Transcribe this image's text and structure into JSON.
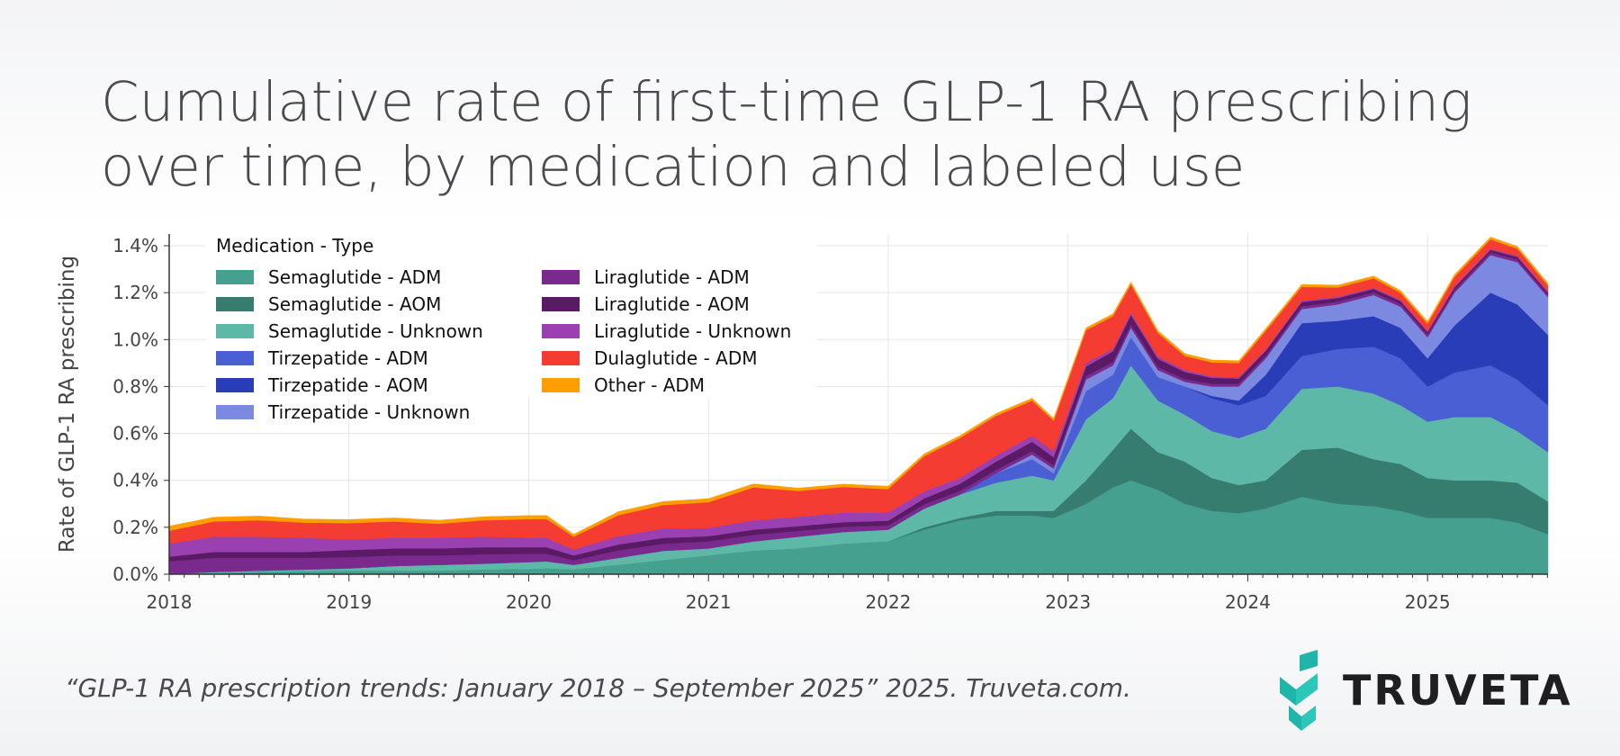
{
  "title": "Cumulative rate of first-time GLP-1 RA prescribing over time, by medication and labeled use",
  "citation": "“GLP-1 RA prescription trends: January 2018 – September 2025” 2025. Truveta.com.",
  "logo": {
    "text": "TRUVETA",
    "icon": "truveta-chevron-logo-icon",
    "color": "#1fb5a8"
  },
  "chart_data": {
    "type": "area",
    "stacked": true,
    "ylabel": "Rate of GLP-1 RA prescribing",
    "xlabel": "",
    "ylim": [
      0,
      1.45
    ],
    "yticks": [
      "0.0%",
      "0.2%",
      "0.4%",
      "0.6%",
      "0.8%",
      "1.0%",
      "1.2%",
      "1.4%"
    ],
    "ytick_values": [
      0,
      0.2,
      0.4,
      0.6,
      0.8,
      1.0,
      1.2,
      1.4
    ],
    "xticks": [
      "2018",
      "2019",
      "2020",
      "2021",
      "2022",
      "2023",
      "2024",
      "2025"
    ],
    "xlim": [
      2018.0,
      2025.67
    ],
    "grid": true,
    "legend": {
      "title": "Medication - Type",
      "placement": "top-left",
      "columns": 2
    },
    "x": [
      2018.0,
      2018.25,
      2018.5,
      2018.75,
      2019.0,
      2019.25,
      2019.5,
      2019.75,
      2020.0,
      2020.1,
      2020.25,
      2020.5,
      2020.75,
      2021.0,
      2021.25,
      2021.5,
      2021.75,
      2022.0,
      2022.2,
      2022.4,
      2022.6,
      2022.8,
      2022.92,
      2023.1,
      2023.25,
      2023.35,
      2023.5,
      2023.65,
      2023.8,
      2023.95,
      2024.1,
      2024.3,
      2024.5,
      2024.7,
      2024.85,
      2025.0,
      2025.15,
      2025.35,
      2025.5,
      2025.67
    ],
    "series": [
      {
        "name": "Semaglutide - ADM",
        "color": "#46a08f",
        "values": [
          0.0,
          0.005,
          0.01,
          0.012,
          0.015,
          0.015,
          0.015,
          0.02,
          0.022,
          0.025,
          0.02,
          0.04,
          0.06,
          0.08,
          0.1,
          0.11,
          0.13,
          0.14,
          0.19,
          0.23,
          0.25,
          0.25,
          0.24,
          0.3,
          0.37,
          0.4,
          0.36,
          0.3,
          0.27,
          0.26,
          0.28,
          0.33,
          0.3,
          0.29,
          0.27,
          0.24,
          0.24,
          0.24,
          0.22,
          0.17
        ]
      },
      {
        "name": "Semaglutide - AOM",
        "color": "#367d70",
        "values": [
          0.0,
          0.0,
          0.0,
          0.0,
          0.0,
          0.0,
          0.0,
          0.0,
          0.0,
          0.0,
          0.0,
          0.0,
          0.0,
          0.0,
          0.0,
          0.0,
          0.0,
          0.0,
          0.01,
          0.01,
          0.02,
          0.02,
          0.03,
          0.1,
          0.16,
          0.22,
          0.16,
          0.18,
          0.14,
          0.12,
          0.12,
          0.2,
          0.24,
          0.2,
          0.2,
          0.17,
          0.16,
          0.16,
          0.17,
          0.14
        ]
      },
      {
        "name": "Semaglutide - Unknown",
        "color": "#5eb8a8",
        "values": [
          0.0,
          0.005,
          0.005,
          0.008,
          0.01,
          0.02,
          0.025,
          0.025,
          0.03,
          0.03,
          0.02,
          0.03,
          0.04,
          0.03,
          0.04,
          0.05,
          0.05,
          0.05,
          0.08,
          0.1,
          0.12,
          0.15,
          0.13,
          0.26,
          0.22,
          0.27,
          0.22,
          0.2,
          0.2,
          0.2,
          0.22,
          0.26,
          0.26,
          0.28,
          0.25,
          0.24,
          0.27,
          0.27,
          0.22,
          0.21
        ]
      },
      {
        "name": "Tirzepatide - ADM",
        "color": "#4a5fd4",
        "values": [
          0.0,
          0.0,
          0.0,
          0.0,
          0.0,
          0.0,
          0.0,
          0.0,
          0.0,
          0.0,
          0.0,
          0.0,
          0.0,
          0.0,
          0.0,
          0.0,
          0.0,
          0.0,
          0.0,
          0.0,
          0.04,
          0.07,
          0.03,
          0.12,
          0.1,
          0.12,
          0.1,
          0.12,
          0.14,
          0.14,
          0.14,
          0.14,
          0.16,
          0.2,
          0.2,
          0.15,
          0.19,
          0.22,
          0.22,
          0.2
        ]
      },
      {
        "name": "Tirzepatide - AOM",
        "color": "#2a3db8",
        "values": [
          0.0,
          0.0,
          0.0,
          0.0,
          0.0,
          0.0,
          0.0,
          0.0,
          0.0,
          0.0,
          0.0,
          0.0,
          0.0,
          0.0,
          0.0,
          0.0,
          0.0,
          0.0,
          0.0,
          0.0,
          0.0,
          0.0,
          0.0,
          0.0,
          0.0,
          0.0,
          0.0,
          0.0,
          0.01,
          0.02,
          0.09,
          0.14,
          0.12,
          0.13,
          0.13,
          0.12,
          0.2,
          0.31,
          0.32,
          0.3
        ]
      },
      {
        "name": "Tirzepatide - Unknown",
        "color": "#7b8ae0",
        "values": [
          0.0,
          0.0,
          0.0,
          0.0,
          0.0,
          0.0,
          0.0,
          0.0,
          0.0,
          0.0,
          0.0,
          0.0,
          0.0,
          0.0,
          0.0,
          0.0,
          0.0,
          0.0,
          0.0,
          0.0,
          0.0,
          0.02,
          0.02,
          0.05,
          0.04,
          0.04,
          0.03,
          0.02,
          0.04,
          0.06,
          0.07,
          0.06,
          0.07,
          0.09,
          0.09,
          0.09,
          0.14,
          0.16,
          0.18,
          0.16
        ]
      },
      {
        "name": "Liraglutide - ADM",
        "color": "#7a2a8c",
        "values": [
          0.055,
          0.06,
          0.055,
          0.05,
          0.048,
          0.045,
          0.04,
          0.04,
          0.035,
          0.032,
          0.02,
          0.032,
          0.03,
          0.03,
          0.028,
          0.025,
          0.022,
          0.018,
          0.018,
          0.016,
          0.015,
          0.015,
          0.014,
          0.015,
          0.015,
          0.015,
          0.013,
          0.012,
          0.012,
          0.012,
          0.012,
          0.012,
          0.012,
          0.012,
          0.012,
          0.012,
          0.012,
          0.012,
          0.012,
          0.01
        ]
      },
      {
        "name": "Liraglutide - AOM",
        "color": "#5a1a66",
        "values": [
          0.02,
          0.025,
          0.025,
          0.025,
          0.03,
          0.03,
          0.03,
          0.03,
          0.028,
          0.028,
          0.02,
          0.025,
          0.025,
          0.022,
          0.022,
          0.02,
          0.02,
          0.02,
          0.025,
          0.03,
          0.035,
          0.04,
          0.035,
          0.04,
          0.045,
          0.04,
          0.035,
          0.03,
          0.025,
          0.022,
          0.02,
          0.018,
          0.015,
          0.014,
          0.012,
          0.01,
          0.01,
          0.01,
          0.01,
          0.01
        ]
      },
      {
        "name": "Liraglutide - Unknown",
        "color": "#9a40b0",
        "values": [
          0.055,
          0.065,
          0.065,
          0.06,
          0.045,
          0.045,
          0.045,
          0.045,
          0.04,
          0.04,
          0.025,
          0.035,
          0.04,
          0.035,
          0.04,
          0.04,
          0.04,
          0.035,
          0.03,
          0.025,
          0.025,
          0.025,
          0.025,
          0.015,
          0.01,
          0.01,
          0.01,
          0.008,
          0.006,
          0.006,
          0.005,
          0.005,
          0.005,
          0.005,
          0.005,
          0.005,
          0.005,
          0.005,
          0.005,
          0.005
        ]
      },
      {
        "name": "Dulaglutide - ADM",
        "color": "#f53c32",
        "values": [
          0.055,
          0.065,
          0.07,
          0.065,
          0.07,
          0.07,
          0.06,
          0.07,
          0.08,
          0.08,
          0.055,
          0.09,
          0.1,
          0.11,
          0.14,
          0.11,
          0.11,
          0.1,
          0.15,
          0.17,
          0.17,
          0.15,
          0.13,
          0.14,
          0.14,
          0.12,
          0.1,
          0.06,
          0.06,
          0.06,
          0.08,
          0.06,
          0.04,
          0.04,
          0.03,
          0.03,
          0.04,
          0.04,
          0.03,
          0.025
        ]
      },
      {
        "name": "Other - ADM",
        "color": "#ff9e00",
        "values": [
          0.02,
          0.018,
          0.018,
          0.015,
          0.015,
          0.015,
          0.015,
          0.015,
          0.015,
          0.015,
          0.01,
          0.015,
          0.015,
          0.015,
          0.015,
          0.012,
          0.012,
          0.012,
          0.01,
          0.01,
          0.01,
          0.01,
          0.01,
          0.01,
          0.01,
          0.01,
          0.01,
          0.01,
          0.01,
          0.01,
          0.01,
          0.01,
          0.01,
          0.01,
          0.01,
          0.01,
          0.01,
          0.01,
          0.01,
          0.01
        ]
      }
    ]
  }
}
